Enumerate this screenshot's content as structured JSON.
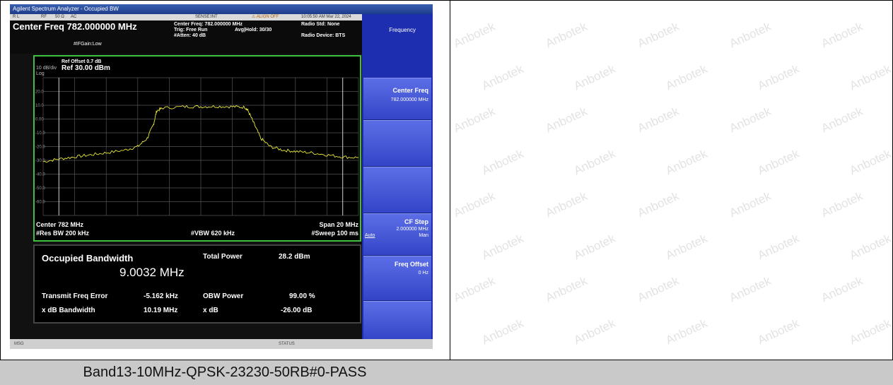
{
  "instrument": {
    "window_title": "Agilent Spectrum Analyzer - Occupied BW",
    "status_row": [
      "R L",
      "RF",
      "50 Ω",
      "AC",
      "SENSE:INT",
      "⚠ ALIGN OFF",
      "10:05:50 AM Mar 22, 2024"
    ],
    "center_freq_title": "Center Freq 782.000000 MHz",
    "center_freq_detail": "Center Freq: 782.000000 MHz",
    "trig": "Trig: Free Run",
    "avg_hold": "Avg|Hold: 30/30",
    "atten": "#Atten: 40 dB",
    "ifgain": "#IFGain:Low",
    "radio_std": "Radio Std: None",
    "radio_device": "Radio Device: BTS",
    "ref_offset": "Ref Offset 0.7 dB",
    "scale": "10 dB/div",
    "ref_level": "Ref 30.00 dBm",
    "log_label": "Log",
    "y_ticks": [
      "20.0",
      "10.0",
      "0.00",
      "-10.0",
      "-20.0",
      "-30.0",
      "-40.0",
      "-50.0",
      "-60.0"
    ],
    "center_label": "Center  782 MHz",
    "res_bw": "#Res BW  200 kHz",
    "vbw": "#VBW  620 kHz",
    "span": "Span 20 MHz",
    "sweep": "#Sweep  100 ms",
    "msg_label": "MSG",
    "status_label": "STATUS"
  },
  "results": {
    "occupied_bw_label": "Occupied Bandwidth",
    "occupied_bw_value": "9.0032 MHz",
    "total_power_label": "Total Power",
    "total_power_value": "28.2 dBm",
    "freq_error_label": "Transmit Freq Error",
    "freq_error_value": "-5.162 kHz",
    "obw_power_label": "OBW Power",
    "obw_power_value": "99.00 %",
    "xdb_bw_label": "x dB Bandwidth",
    "xdb_bw_value": "10.19 MHz",
    "xdb_label": "x dB",
    "xdb_value": "-26.00 dB"
  },
  "softkeys": {
    "menu_title": "Frequency",
    "center_freq_title": "Center Freq",
    "center_freq_value": "782.000000 MHz",
    "cf_step_title": "CF Step",
    "cf_step_value": "2.000000 MHz",
    "cf_step_auto": "Auto",
    "cf_step_man": "Man",
    "freq_offset_title": "Freq Offset",
    "freq_offset_value": "0 Hz"
  },
  "trace": {
    "color": "#e8e83a",
    "x_range_mhz": [
      777,
      787
    ],
    "y_range_dbm": [
      -70,
      30
    ],
    "points": [
      [
        777.0,
        -31
      ],
      [
        777.5,
        -29
      ],
      [
        778.0,
        -27.5
      ],
      [
        778.5,
        -26
      ],
      [
        779.0,
        -24.5
      ],
      [
        779.6,
        -22.5
      ],
      [
        780.0,
        -20
      ],
      [
        780.3,
        -14
      ],
      [
        780.5,
        -4
      ],
      [
        780.6,
        6
      ],
      [
        780.8,
        8
      ],
      [
        781.5,
        9
      ],
      [
        782.0,
        9
      ],
      [
        782.5,
        9.2
      ],
      [
        783.0,
        9
      ],
      [
        783.4,
        8.5
      ],
      [
        783.5,
        6
      ],
      [
        783.7,
        -4
      ],
      [
        783.9,
        -14
      ],
      [
        784.2,
        -20
      ],
      [
        784.6,
        -22.5
      ],
      [
        785.0,
        -23.5
      ],
      [
        785.5,
        -24.5
      ],
      [
        786.0,
        -26
      ],
      [
        786.5,
        -27.5
      ],
      [
        787.0,
        -28
      ]
    ],
    "obw_marker_mhz": [
      777.5,
      786.5
    ]
  },
  "watermark_text": "Anbotek",
  "caption": "Band13-10MHz-QPSK-23230-50RB#0-PASS"
}
